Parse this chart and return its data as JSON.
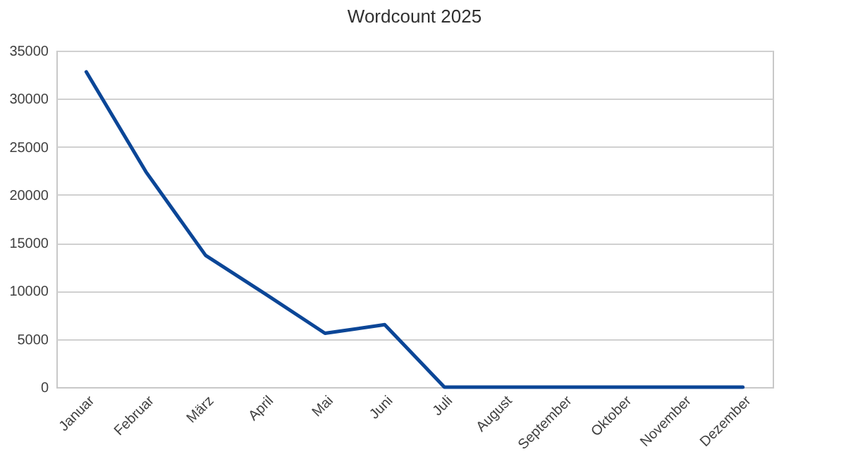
{
  "chart_data": {
    "type": "line",
    "title": "Wordcount 2025",
    "categories": [
      "Januar",
      "Februar",
      "März",
      "April",
      "Mai",
      "Juni",
      "Juli",
      "August",
      "September",
      "Oktober",
      "November",
      "Dezember"
    ],
    "series": [
      {
        "color": "#0b4697",
        "values": [
          32800,
          22400,
          13700,
          9700,
          5600,
          6500,
          0,
          0,
          0,
          0,
          0,
          0
        ]
      }
    ],
    "ylim": [
      0,
      35000
    ],
    "yticks": [
      0,
      5000,
      10000,
      15000,
      20000,
      25000,
      30000,
      35000
    ],
    "grid": "y",
    "marker": "none",
    "line_style": "solid"
  }
}
